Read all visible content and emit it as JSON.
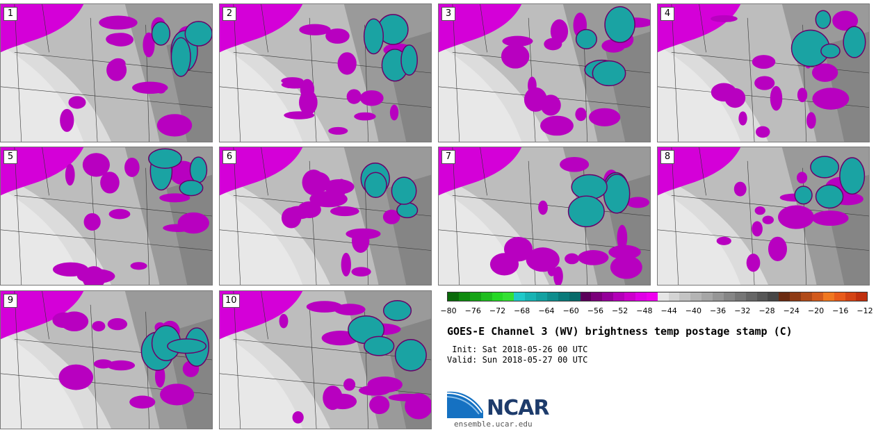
{
  "panels": [
    {
      "label": "1"
    },
    {
      "label": "2"
    },
    {
      "label": "3"
    },
    {
      "label": "4"
    },
    {
      "label": "5"
    },
    {
      "label": "6"
    },
    {
      "label": "7"
    },
    {
      "label": "8"
    },
    {
      "label": "9"
    },
    {
      "label": "10"
    }
  ],
  "colorbar": {
    "colors": [
      "#0a6a0a",
      "#0e8a0e",
      "#16a316",
      "#1fbd1f",
      "#25d825",
      "#34e034",
      "#1fc9c9",
      "#18b3b3",
      "#13a1a1",
      "#0f8d8d",
      "#0a7a7a",
      "#086a6a",
      "#5a005a",
      "#7a007a",
      "#94009a",
      "#b300b8",
      "#cc00cc",
      "#e000e6",
      "#ef00ef",
      "#e6e6e6",
      "#d4d4d4",
      "#c4c4c4",
      "#b4b4b4",
      "#a6a6a6",
      "#969696",
      "#868686",
      "#767676",
      "#666666",
      "#565656",
      "#464646",
      "#6a2a10",
      "#8e3a14",
      "#b04a18",
      "#d25a1c",
      "#f07820",
      "#e85b1a",
      "#d44414",
      "#c0300e"
    ],
    "tick_labels": [
      "−80",
      "−76",
      "−72",
      "−68",
      "−64",
      "−60",
      "−56",
      "−52",
      "−48",
      "−44",
      "−40",
      "−36",
      "−32",
      "−28",
      "−24",
      "−20",
      "−16",
      "−12"
    ]
  },
  "title": "GOES-E Channel 3 (WV) brightness temp postage stamp (C)",
  "init_line": " Init: Sat 2018-05-26 00 UTC",
  "valid_line": "Valid: Sun 2018-05-27 00 UTC",
  "logo_text": "NCAR",
  "website": "ensemble.ucar.edu"
}
